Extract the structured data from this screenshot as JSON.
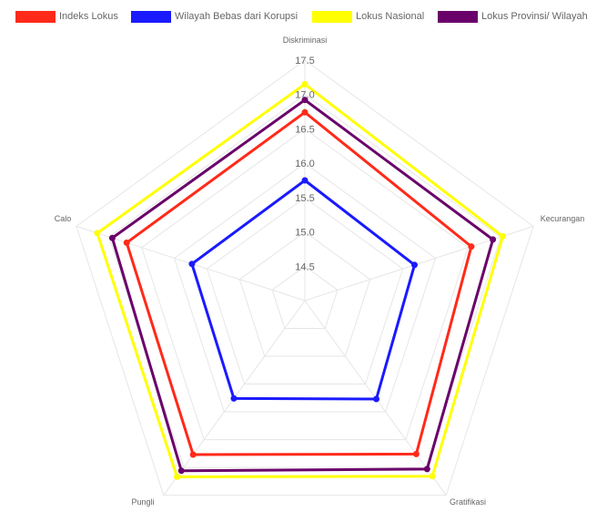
{
  "colors": {
    "grid": "#e6e6e6",
    "tick_text": "#666666",
    "label_text": "#666666"
  },
  "chart_data": {
    "type": "radar",
    "categories": [
      "Diskriminasi",
      "Kecurangan",
      "Gratifikasi",
      "Pungli",
      "Calo"
    ],
    "r_ticks": [
      14.5,
      15.0,
      15.5,
      16.0,
      16.5,
      17.0,
      17.5
    ],
    "r_tick_labels": [
      "14.5",
      "15.0",
      "15.5",
      "16.0",
      "16.5",
      "17.0",
      "17.5"
    ],
    "r_range": [
      14.0,
      17.5
    ],
    "legend_position": "top",
    "series": [
      {
        "name": "Indeks Lokus",
        "color": "#ff2a1a",
        "values": [
          16.74,
          16.55,
          16.76,
          16.77,
          16.73
        ]
      },
      {
        "name": "Wilayah Bebas dari Korupsi",
        "color": "#1a1aff",
        "values": [
          15.75,
          15.68,
          15.77,
          15.76,
          15.73
        ]
      },
      {
        "name": "Lokus Nasional",
        "color": "#ffff00",
        "values": [
          17.15,
          17.03,
          17.16,
          17.17,
          17.18
        ]
      },
      {
        "name": "Lokus Provinsi/ Wilayah",
        "color": "#6a006a",
        "values": [
          16.92,
          16.88,
          17.03,
          17.06,
          16.95
        ]
      }
    ]
  }
}
